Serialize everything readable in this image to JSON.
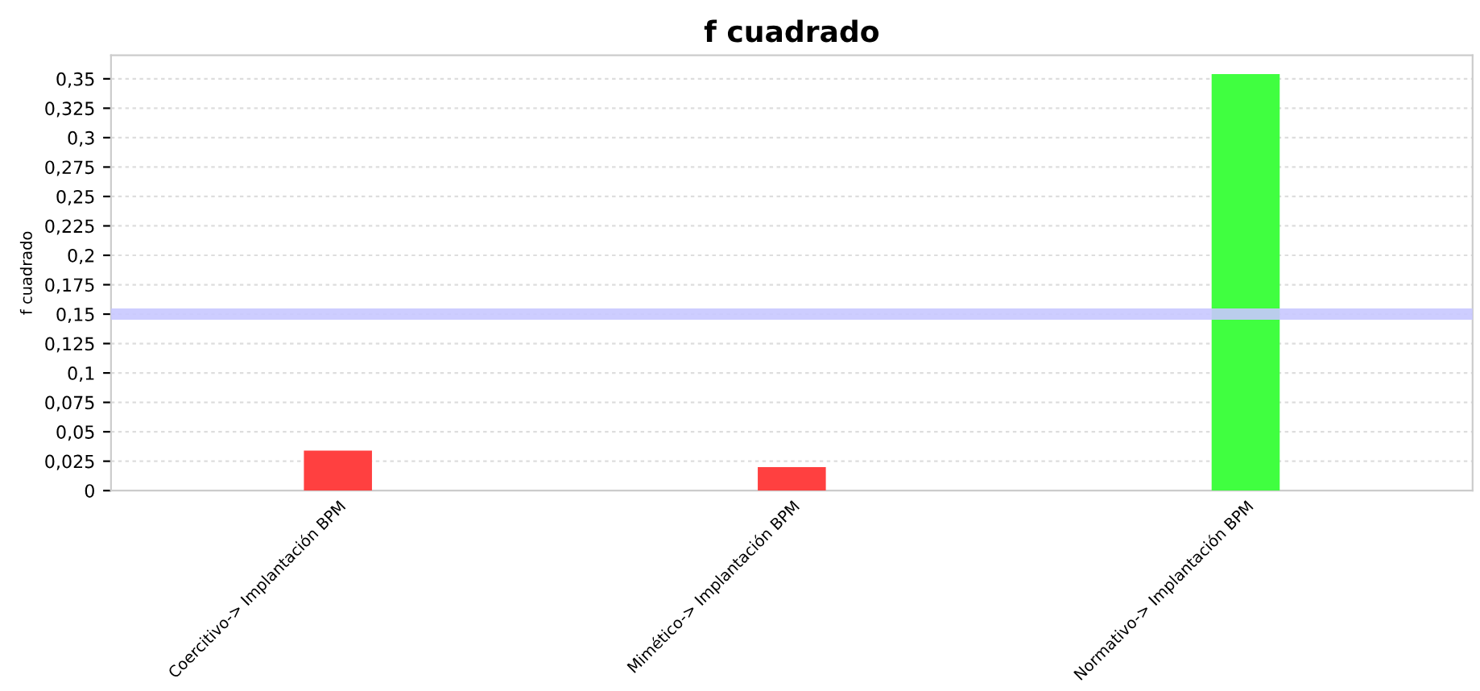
{
  "chart_data": {
    "type": "bar",
    "title": "f cuadrado",
    "ylabel": "f cuadrado",
    "categories": [
      "Coercitivo-> Implantación BPM",
      "Mimético-> Implantación BPM",
      "Normativo-> Implantación BPM"
    ],
    "values": [
      0.034,
      0.02,
      0.354
    ],
    "colors": [
      "#ff4040",
      "#ff4040",
      "#40ff40"
    ],
    "ylim": [
      0,
      0.37
    ],
    "yticks": [
      0,
      {
        "value": 0.025,
        "label": "0,025"
      },
      {
        "value": 0.05,
        "label": "0,05"
      },
      {
        "value": 0.075,
        "label": "0,075"
      },
      {
        "value": 0.1,
        "label": "0,1"
      },
      {
        "value": 0.125,
        "label": "0,125"
      },
      {
        "value": 0.15,
        "label": "0,15"
      },
      {
        "value": 0.175,
        "label": "0,175"
      },
      {
        "value": 0.2,
        "label": "0,2"
      },
      {
        "value": 0.225,
        "label": "0,225"
      },
      {
        "value": 0.25,
        "label": "0,25"
      },
      {
        "value": 0.275,
        "label": "0,275"
      },
      {
        "value": 0.3,
        "label": "0,3"
      },
      {
        "value": 0.325,
        "label": "0,325"
      },
      {
        "value": 0.35,
        "label": "0,35"
      }
    ],
    "ref_lines": [
      {
        "axis": "y",
        "value": 0.15,
        "color": "#c8c8ff"
      }
    ],
    "grid": "y"
  }
}
